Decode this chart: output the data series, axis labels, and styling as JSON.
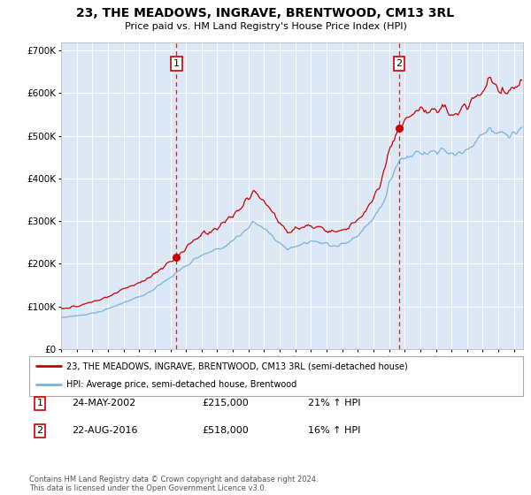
{
  "title": "23, THE MEADOWS, INGRAVE, BRENTWOOD, CM13 3RL",
  "subtitle": "Price paid vs. HM Land Registry's House Price Index (HPI)",
  "background_color": "#ffffff",
  "plot_bg_color": "#dce8f5",
  "hpi_color": "#7ab3d9",
  "price_color": "#cc0000",
  "marker1_date": 2002.38,
  "marker2_date": 2016.64,
  "marker1_price": 215000,
  "marker2_price": 518000,
  "xmin": 1995.0,
  "xmax": 2024.58,
  "ymin": 0,
  "ymax": 720000,
  "yticks": [
    0,
    100000,
    200000,
    300000,
    400000,
    500000,
    600000,
    700000
  ],
  "legend_line1": "23, THE MEADOWS, INGRAVE, BRENTWOOD, CM13 3RL (semi-detached house)",
  "legend_line2": "HPI: Average price, semi-detached house, Brentwood",
  "table_row1_num": "1",
  "table_row1_date": "24-MAY-2002",
  "table_row1_price": "£215,000",
  "table_row1_hpi": "21% ↑ HPI",
  "table_row2_num": "2",
  "table_row2_date": "22-AUG-2016",
  "table_row2_price": "£518,000",
  "table_row2_hpi": "16% ↑ HPI",
  "footnote": "Contains HM Land Registry data © Crown copyright and database right 2024.\nThis data is licensed under the Open Government Licence v3.0."
}
